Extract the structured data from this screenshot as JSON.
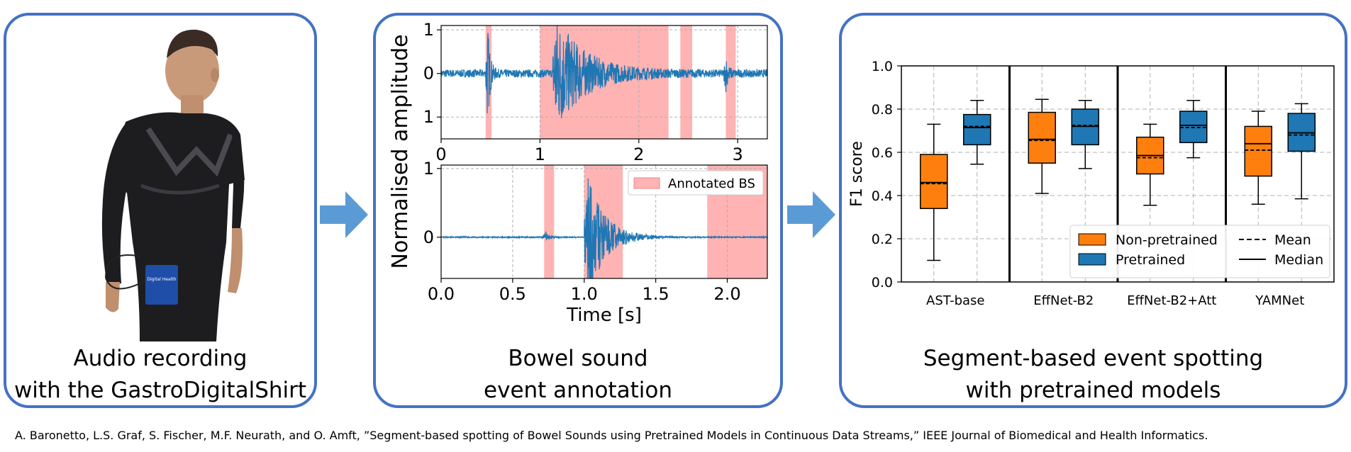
{
  "panels": {
    "recording": {
      "caption_line1": "Audio recording",
      "caption_line2": "with the GastroDigitalShirt",
      "shirt_badge_text": "Digital Health"
    },
    "annotation": {
      "caption_line1": "Bowel sound",
      "caption_line2": "event annotation"
    },
    "spotting": {
      "caption_line1": "Segment-based event spotting",
      "caption_line2": "with pretrained models"
    }
  },
  "citation": "A. Baronetto, L.S. Graf, S. Fischer, M.F. Neurath, and O. Amft, ”Segment-based spotting of Bowel Sounds using Pretrained Models in Continuous Data Streams,” IEEE Journal of Biomedical and Health Informatics.",
  "colors": {
    "panel_border": "#4472c4",
    "arrow": "#5b9bd5",
    "signal": "#1f77b4",
    "annotation": "#ffb3b3",
    "non_pretrained": "#ff7f0e",
    "pretrained": "#1f77b4"
  },
  "chart_data": [
    {
      "type": "line",
      "ylabel": "Normalised amplitude",
      "xlim": [
        0,
        3.3
      ],
      "ylim": [
        -1.5,
        1.1
      ],
      "x_ticks": [
        "0",
        "1",
        "2",
        "3"
      ],
      "y_ticks": [
        "1",
        "0",
        "1"
      ],
      "annotated_regions": [
        [
          0.45,
          0.51
        ],
        [
          1.0,
          2.3
        ],
        [
          2.42,
          2.54
        ],
        [
          2.88,
          2.98
        ]
      ]
    },
    {
      "type": "line",
      "xlabel": "Time [s]",
      "xlim": [
        0,
        2.28
      ],
      "ylim": [
        -0.6,
        1.05
      ],
      "x_ticks": [
        "0.0",
        "0.5",
        "1.0",
        "1.5",
        "2.0"
      ],
      "y_ticks": [
        "1",
        "0"
      ],
      "legend": "Annotated BS",
      "legend_position": "top-right",
      "annotated_regions": [
        [
          0.72,
          0.79
        ],
        [
          1.0,
          1.27
        ],
        [
          1.86,
          2.28
        ]
      ]
    },
    {
      "type": "box",
      "ylabel": "F1 score",
      "ylim": [
        0,
        1.0
      ],
      "y_ticks": [
        "0.0",
        "0.2",
        "0.4",
        "0.6",
        "0.8",
        "1.0"
      ],
      "categories": [
        "AST-base",
        "EffNet-B2",
        "EffNet-B2+Att",
        "YAMNet"
      ],
      "legend": {
        "series": [
          "Non-pretrained",
          "Pretrained"
        ],
        "lines": [
          "Mean",
          "Median"
        ],
        "position": "bottom-right"
      },
      "series": [
        {
          "name": "Non-pretrained",
          "boxes": [
            {
              "min": 0.1,
              "q1": 0.34,
              "median": 0.46,
              "mean": 0.455,
              "q3": 0.59,
              "max": 0.73
            },
            {
              "min": 0.41,
              "q1": 0.55,
              "median": 0.66,
              "mean": 0.655,
              "q3": 0.785,
              "max": 0.845
            },
            {
              "min": 0.355,
              "q1": 0.5,
              "median": 0.585,
              "mean": 0.575,
              "q3": 0.67,
              "max": 0.73
            },
            {
              "min": 0.36,
              "q1": 0.49,
              "median": 0.64,
              "mean": 0.61,
              "q3": 0.72,
              "max": 0.79
            }
          ]
        },
        {
          "name": "Pretrained",
          "boxes": [
            {
              "min": 0.545,
              "q1": 0.635,
              "median": 0.715,
              "mean": 0.72,
              "q3": 0.775,
              "max": 0.84
            },
            {
              "min": 0.525,
              "q1": 0.635,
              "median": 0.72,
              "mean": 0.725,
              "q3": 0.8,
              "max": 0.84
            },
            {
              "min": 0.575,
              "q1": 0.645,
              "median": 0.725,
              "mean": 0.715,
              "q3": 0.79,
              "max": 0.84
            },
            {
              "min": 0.385,
              "q1": 0.605,
              "median": 0.69,
              "mean": 0.68,
              "q3": 0.78,
              "max": 0.825
            }
          ]
        }
      ]
    }
  ]
}
